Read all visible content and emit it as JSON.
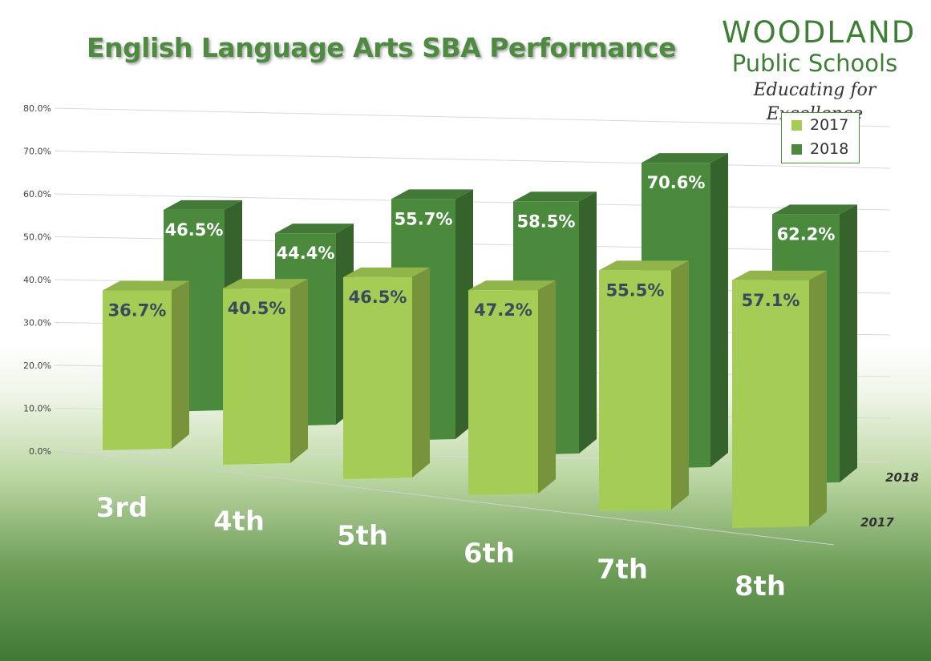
{
  "title": "English Language Arts SBA Performance",
  "logo": {
    "name": "WOODLAND",
    "subtitle": "Public Schools",
    "tagline": "Educating for Excellence"
  },
  "legend": [
    {
      "label": "2017",
      "color": "#a5cd55"
    },
    {
      "label": "2018",
      "color": "#4b8a3d"
    }
  ],
  "chart_data": {
    "type": "bar",
    "subtype": "3d-clustered",
    "categories": [
      "3rd",
      "4th",
      "5th",
      "6th",
      "7th",
      "8th"
    ],
    "series": [
      {
        "name": "2017",
        "values": [
          36.7,
          40.5,
          46.5,
          47.2,
          55.5,
          57.1
        ],
        "labels": [
          "36.7%",
          "40.5%",
          "46.5%",
          "47.2%",
          "55.5%",
          "57.1%"
        ],
        "color": "#a5cd55"
      },
      {
        "name": "2018",
        "values": [
          46.5,
          44.4,
          55.7,
          58.5,
          70.6,
          62.2
        ],
        "labels": [
          "46.5%",
          "44.4%",
          "55.7%",
          "58.5%",
          "70.6%",
          "62.2%"
        ],
        "color": "#4b8a3d"
      }
    ],
    "yticks": [
      "0.0%",
      "10.0%",
      "20.0%",
      "30.0%",
      "40.0%",
      "50.0%",
      "60.0%",
      "70.0%",
      "80.0%"
    ],
    "ylim": [
      0,
      80
    ],
    "depth_labels": [
      "2018",
      "2017"
    ],
    "legend_position": "top-right",
    "grid": true
  }
}
